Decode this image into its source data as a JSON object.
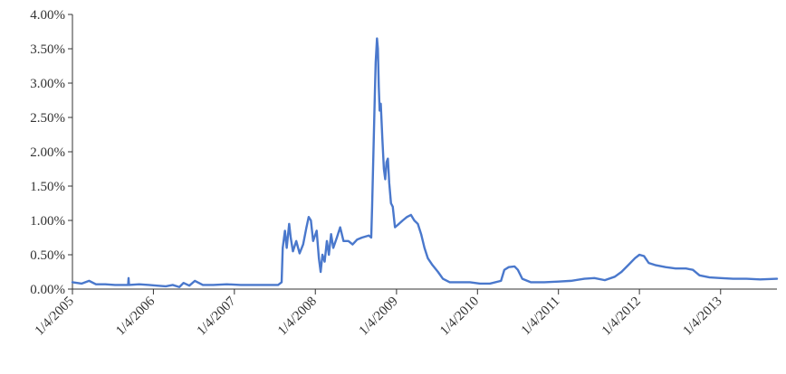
{
  "chart_data": {
    "type": "line",
    "title": "",
    "xlabel": "",
    "ylabel": "",
    "ylim": [
      0,
      4.0
    ],
    "xlim": [
      "2005-01-04",
      "2013-09-15"
    ],
    "grid": false,
    "legend": "none",
    "y_ticks": [
      {
        "value": 0.0,
        "label": "0.00%"
      },
      {
        "value": 0.5,
        "label": "0.50%"
      },
      {
        "value": 1.0,
        "label": "1.00%"
      },
      {
        "value": 1.5,
        "label": "1.50%"
      },
      {
        "value": 2.0,
        "label": "2.00%"
      },
      {
        "value": 2.5,
        "label": "2.50%"
      },
      {
        "value": 3.0,
        "label": "3.00%"
      },
      {
        "value": 3.5,
        "label": "3.50%"
      },
      {
        "value": 4.0,
        "label": "4.00%"
      }
    ],
    "x_ticks": [
      {
        "value": "2005-01-04",
        "label": "1/4/2005"
      },
      {
        "value": "2006-01-04",
        "label": "1/4/2006"
      },
      {
        "value": "2007-01-04",
        "label": "1/4/2007"
      },
      {
        "value": "2008-01-04",
        "label": "1/4/2008"
      },
      {
        "value": "2009-01-04",
        "label": "1/4/2009"
      },
      {
        "value": "2010-01-04",
        "label": "1/4/2010"
      },
      {
        "value": "2011-01-04",
        "label": "1/4/2011"
      },
      {
        "value": "2012-01-04",
        "label": "1/4/2012"
      },
      {
        "value": "2013-01-04",
        "label": "1/4/2013"
      }
    ],
    "series": [
      {
        "color": "#4a78cc",
        "points": [
          [
            "2005-01-04",
            0.1
          ],
          [
            "2005-02-15",
            0.08
          ],
          [
            "2005-03-20",
            0.12
          ],
          [
            "2005-04-20",
            0.07
          ],
          [
            "2005-06-01",
            0.07
          ],
          [
            "2005-07-15",
            0.06
          ],
          [
            "2005-08-25",
            0.06
          ],
          [
            "2005-09-12",
            0.06
          ],
          [
            "2005-09-14",
            0.16
          ],
          [
            "2005-09-16",
            0.06
          ],
          [
            "2005-11-01",
            0.07
          ],
          [
            "2005-12-15",
            0.06
          ],
          [
            "2006-01-20",
            0.05
          ],
          [
            "2006-03-01",
            0.04
          ],
          [
            "2006-04-01",
            0.06
          ],
          [
            "2006-05-01",
            0.03
          ],
          [
            "2006-05-20",
            0.09
          ],
          [
            "2006-06-15",
            0.05
          ],
          [
            "2006-07-10",
            0.12
          ],
          [
            "2006-08-15",
            0.06
          ],
          [
            "2006-10-01",
            0.06
          ],
          [
            "2006-12-01",
            0.07
          ],
          [
            "2007-02-01",
            0.06
          ],
          [
            "2007-04-01",
            0.06
          ],
          [
            "2007-06-01",
            0.06
          ],
          [
            "2007-07-20",
            0.06
          ],
          [
            "2007-08-05",
            0.1
          ],
          [
            "2007-08-10",
            0.6
          ],
          [
            "2007-08-20",
            0.85
          ],
          [
            "2007-08-28",
            0.6
          ],
          [
            "2007-09-08",
            0.95
          ],
          [
            "2007-09-15",
            0.75
          ],
          [
            "2007-09-25",
            0.55
          ],
          [
            "2007-10-10",
            0.7
          ],
          [
            "2007-10-25",
            0.52
          ],
          [
            "2007-11-10",
            0.65
          ],
          [
            "2007-11-25",
            0.9
          ],
          [
            "2007-12-05",
            1.05
          ],
          [
            "2007-12-15",
            1.0
          ],
          [
            "2007-12-25",
            0.7
          ],
          [
            "2008-01-10",
            0.85
          ],
          [
            "2008-01-20",
            0.45
          ],
          [
            "2008-01-28",
            0.25
          ],
          [
            "2008-02-05",
            0.5
          ],
          [
            "2008-02-15",
            0.4
          ],
          [
            "2008-02-25",
            0.7
          ],
          [
            "2008-03-05",
            0.5
          ],
          [
            "2008-03-15",
            0.8
          ],
          [
            "2008-03-25",
            0.6
          ],
          [
            "2008-04-10",
            0.75
          ],
          [
            "2008-04-25",
            0.9
          ],
          [
            "2008-05-10",
            0.7
          ],
          [
            "2008-06-01",
            0.7
          ],
          [
            "2008-06-20",
            0.65
          ],
          [
            "2008-07-10",
            0.72
          ],
          [
            "2008-08-01",
            0.75
          ],
          [
            "2008-09-01",
            0.78
          ],
          [
            "2008-09-12",
            0.75
          ],
          [
            "2008-09-16",
            1.2
          ],
          [
            "2008-09-22",
            2.0
          ],
          [
            "2008-09-28",
            2.8
          ],
          [
            "2008-10-02",
            3.3
          ],
          [
            "2008-10-08",
            3.65
          ],
          [
            "2008-10-12",
            3.5
          ],
          [
            "2008-10-16",
            2.95
          ],
          [
            "2008-10-20",
            2.6
          ],
          [
            "2008-10-25",
            2.7
          ],
          [
            "2008-11-01",
            2.2
          ],
          [
            "2008-11-08",
            1.75
          ],
          [
            "2008-11-14",
            1.6
          ],
          [
            "2008-11-20",
            1.85
          ],
          [
            "2008-11-26",
            1.9
          ],
          [
            "2008-12-02",
            1.55
          ],
          [
            "2008-12-10",
            1.25
          ],
          [
            "2008-12-18",
            1.2
          ],
          [
            "2008-12-28",
            0.9
          ],
          [
            "2009-01-15",
            0.95
          ],
          [
            "2009-02-01",
            1.0
          ],
          [
            "2009-02-20",
            1.05
          ],
          [
            "2009-03-10",
            1.08
          ],
          [
            "2009-03-25",
            1.0
          ],
          [
            "2009-04-10",
            0.95
          ],
          [
            "2009-04-25",
            0.8
          ],
          [
            "2009-05-10",
            0.6
          ],
          [
            "2009-05-25",
            0.45
          ],
          [
            "2009-06-15",
            0.35
          ],
          [
            "2009-07-10",
            0.25
          ],
          [
            "2009-08-01",
            0.15
          ],
          [
            "2009-09-01",
            0.1
          ],
          [
            "2009-10-15",
            0.1
          ],
          [
            "2009-12-01",
            0.1
          ],
          [
            "2010-01-15",
            0.08
          ],
          [
            "2010-03-01",
            0.08
          ],
          [
            "2010-04-20",
            0.12
          ],
          [
            "2010-05-05",
            0.28
          ],
          [
            "2010-05-25",
            0.32
          ],
          [
            "2010-06-20",
            0.33
          ],
          [
            "2010-07-05",
            0.28
          ],
          [
            "2010-07-25",
            0.15
          ],
          [
            "2010-09-01",
            0.1
          ],
          [
            "2010-11-01",
            0.1
          ],
          [
            "2011-01-04",
            0.11
          ],
          [
            "2011-03-01",
            0.12
          ],
          [
            "2011-05-01",
            0.15
          ],
          [
            "2011-06-15",
            0.16
          ],
          [
            "2011-08-01",
            0.13
          ],
          [
            "2011-09-15",
            0.18
          ],
          [
            "2011-10-15",
            0.25
          ],
          [
            "2011-11-15",
            0.35
          ],
          [
            "2011-12-15",
            0.45
          ],
          [
            "2012-01-04",
            0.5
          ],
          [
            "2012-01-25",
            0.48
          ],
          [
            "2012-02-15",
            0.38
          ],
          [
            "2012-03-15",
            0.35
          ],
          [
            "2012-05-01",
            0.32
          ],
          [
            "2012-06-15",
            0.3
          ],
          [
            "2012-08-01",
            0.3
          ],
          [
            "2012-09-01",
            0.28
          ],
          [
            "2012-10-01",
            0.2
          ],
          [
            "2012-11-15",
            0.17
          ],
          [
            "2013-01-04",
            0.16
          ],
          [
            "2013-03-01",
            0.15
          ],
          [
            "2013-05-01",
            0.15
          ],
          [
            "2013-07-01",
            0.14
          ],
          [
            "2013-09-15",
            0.15
          ]
        ]
      }
    ]
  }
}
